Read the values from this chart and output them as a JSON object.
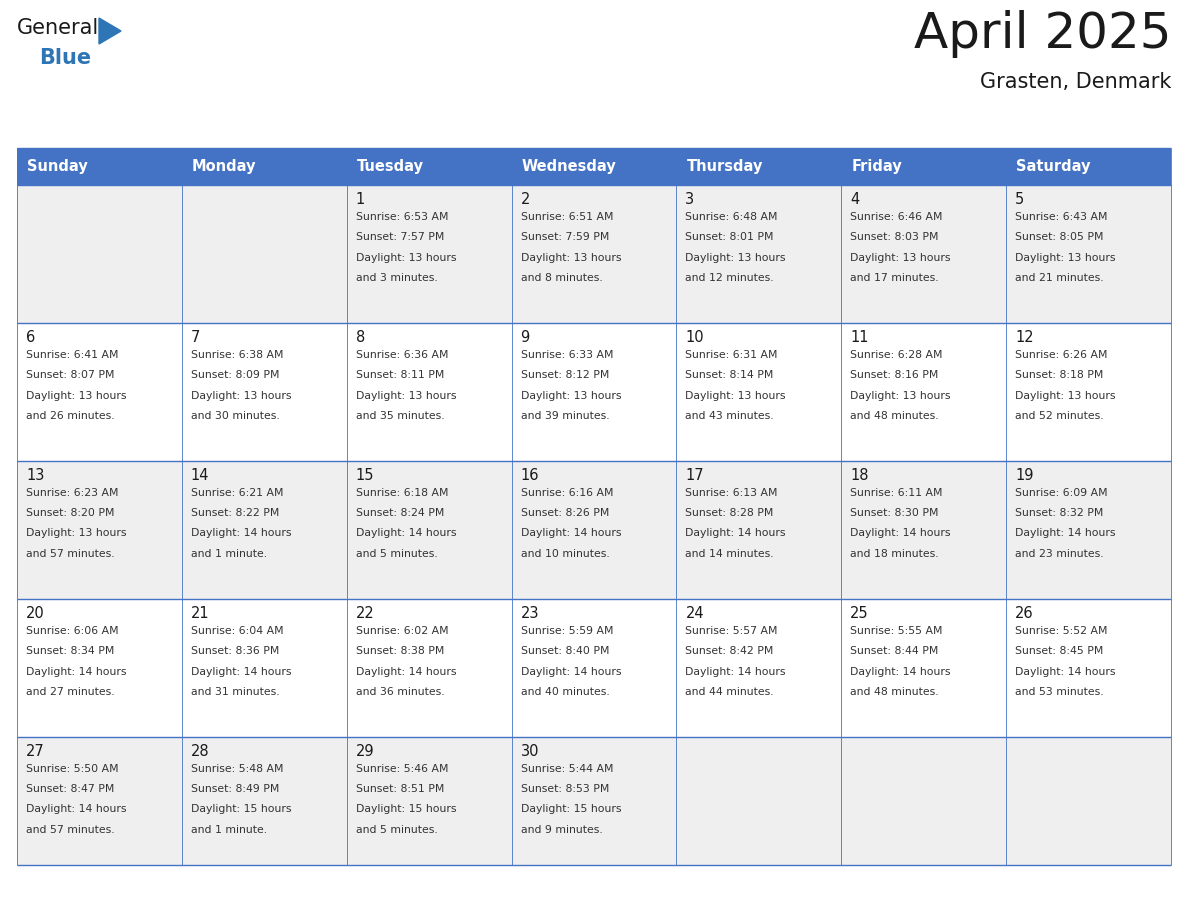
{
  "title": "April 2025",
  "subtitle": "Grasten, Denmark",
  "header_bg": "#4472C4",
  "header_text_color": "#FFFFFF",
  "cell_bg_odd": "#EFEFEF",
  "cell_bg_even": "#FFFFFF",
  "border_color": "#4472C4",
  "text_color": "#333333",
  "day_number_color": "#1A1A1A",
  "title_color": "#1A1A1A",
  "day_headers": [
    "Sunday",
    "Monday",
    "Tuesday",
    "Wednesday",
    "Thursday",
    "Friday",
    "Saturday"
  ],
  "logo_general_color": "#1A1A1A",
  "logo_blue_color": "#2E75B6",
  "weeks": [
    [
      {
        "day": "",
        "lines": []
      },
      {
        "day": "",
        "lines": []
      },
      {
        "day": "1",
        "lines": [
          "Sunrise: 6:53 AM",
          "Sunset: 7:57 PM",
          "Daylight: 13 hours",
          "and 3 minutes."
        ]
      },
      {
        "day": "2",
        "lines": [
          "Sunrise: 6:51 AM",
          "Sunset: 7:59 PM",
          "Daylight: 13 hours",
          "and 8 minutes."
        ]
      },
      {
        "day": "3",
        "lines": [
          "Sunrise: 6:48 AM",
          "Sunset: 8:01 PM",
          "Daylight: 13 hours",
          "and 12 minutes."
        ]
      },
      {
        "day": "4",
        "lines": [
          "Sunrise: 6:46 AM",
          "Sunset: 8:03 PM",
          "Daylight: 13 hours",
          "and 17 minutes."
        ]
      },
      {
        "day": "5",
        "lines": [
          "Sunrise: 6:43 AM",
          "Sunset: 8:05 PM",
          "Daylight: 13 hours",
          "and 21 minutes."
        ]
      }
    ],
    [
      {
        "day": "6",
        "lines": [
          "Sunrise: 6:41 AM",
          "Sunset: 8:07 PM",
          "Daylight: 13 hours",
          "and 26 minutes."
        ]
      },
      {
        "day": "7",
        "lines": [
          "Sunrise: 6:38 AM",
          "Sunset: 8:09 PM",
          "Daylight: 13 hours",
          "and 30 minutes."
        ]
      },
      {
        "day": "8",
        "lines": [
          "Sunrise: 6:36 AM",
          "Sunset: 8:11 PM",
          "Daylight: 13 hours",
          "and 35 minutes."
        ]
      },
      {
        "day": "9",
        "lines": [
          "Sunrise: 6:33 AM",
          "Sunset: 8:12 PM",
          "Daylight: 13 hours",
          "and 39 minutes."
        ]
      },
      {
        "day": "10",
        "lines": [
          "Sunrise: 6:31 AM",
          "Sunset: 8:14 PM",
          "Daylight: 13 hours",
          "and 43 minutes."
        ]
      },
      {
        "day": "11",
        "lines": [
          "Sunrise: 6:28 AM",
          "Sunset: 8:16 PM",
          "Daylight: 13 hours",
          "and 48 minutes."
        ]
      },
      {
        "day": "12",
        "lines": [
          "Sunrise: 6:26 AM",
          "Sunset: 8:18 PM",
          "Daylight: 13 hours",
          "and 52 minutes."
        ]
      }
    ],
    [
      {
        "day": "13",
        "lines": [
          "Sunrise: 6:23 AM",
          "Sunset: 8:20 PM",
          "Daylight: 13 hours",
          "and 57 minutes."
        ]
      },
      {
        "day": "14",
        "lines": [
          "Sunrise: 6:21 AM",
          "Sunset: 8:22 PM",
          "Daylight: 14 hours",
          "and 1 minute."
        ]
      },
      {
        "day": "15",
        "lines": [
          "Sunrise: 6:18 AM",
          "Sunset: 8:24 PM",
          "Daylight: 14 hours",
          "and 5 minutes."
        ]
      },
      {
        "day": "16",
        "lines": [
          "Sunrise: 6:16 AM",
          "Sunset: 8:26 PM",
          "Daylight: 14 hours",
          "and 10 minutes."
        ]
      },
      {
        "day": "17",
        "lines": [
          "Sunrise: 6:13 AM",
          "Sunset: 8:28 PM",
          "Daylight: 14 hours",
          "and 14 minutes."
        ]
      },
      {
        "day": "18",
        "lines": [
          "Sunrise: 6:11 AM",
          "Sunset: 8:30 PM",
          "Daylight: 14 hours",
          "and 18 minutes."
        ]
      },
      {
        "day": "19",
        "lines": [
          "Sunrise: 6:09 AM",
          "Sunset: 8:32 PM",
          "Daylight: 14 hours",
          "and 23 minutes."
        ]
      }
    ],
    [
      {
        "day": "20",
        "lines": [
          "Sunrise: 6:06 AM",
          "Sunset: 8:34 PM",
          "Daylight: 14 hours",
          "and 27 minutes."
        ]
      },
      {
        "day": "21",
        "lines": [
          "Sunrise: 6:04 AM",
          "Sunset: 8:36 PM",
          "Daylight: 14 hours",
          "and 31 minutes."
        ]
      },
      {
        "day": "22",
        "lines": [
          "Sunrise: 6:02 AM",
          "Sunset: 8:38 PM",
          "Daylight: 14 hours",
          "and 36 minutes."
        ]
      },
      {
        "day": "23",
        "lines": [
          "Sunrise: 5:59 AM",
          "Sunset: 8:40 PM",
          "Daylight: 14 hours",
          "and 40 minutes."
        ]
      },
      {
        "day": "24",
        "lines": [
          "Sunrise: 5:57 AM",
          "Sunset: 8:42 PM",
          "Daylight: 14 hours",
          "and 44 minutes."
        ]
      },
      {
        "day": "25",
        "lines": [
          "Sunrise: 5:55 AM",
          "Sunset: 8:44 PM",
          "Daylight: 14 hours",
          "and 48 minutes."
        ]
      },
      {
        "day": "26",
        "lines": [
          "Sunrise: 5:52 AM",
          "Sunset: 8:45 PM",
          "Daylight: 14 hours",
          "and 53 minutes."
        ]
      }
    ],
    [
      {
        "day": "27",
        "lines": [
          "Sunrise: 5:50 AM",
          "Sunset: 8:47 PM",
          "Daylight: 14 hours",
          "and 57 minutes."
        ]
      },
      {
        "day": "28",
        "lines": [
          "Sunrise: 5:48 AM",
          "Sunset: 8:49 PM",
          "Daylight: 15 hours",
          "and 1 minute."
        ]
      },
      {
        "day": "29",
        "lines": [
          "Sunrise: 5:46 AM",
          "Sunset: 8:51 PM",
          "Daylight: 15 hours",
          "and 5 minutes."
        ]
      },
      {
        "day": "30",
        "lines": [
          "Sunrise: 5:44 AM",
          "Sunset: 8:53 PM",
          "Daylight: 15 hours",
          "and 9 minutes."
        ]
      },
      {
        "day": "",
        "lines": []
      },
      {
        "day": "",
        "lines": []
      },
      {
        "day": "",
        "lines": []
      }
    ]
  ]
}
